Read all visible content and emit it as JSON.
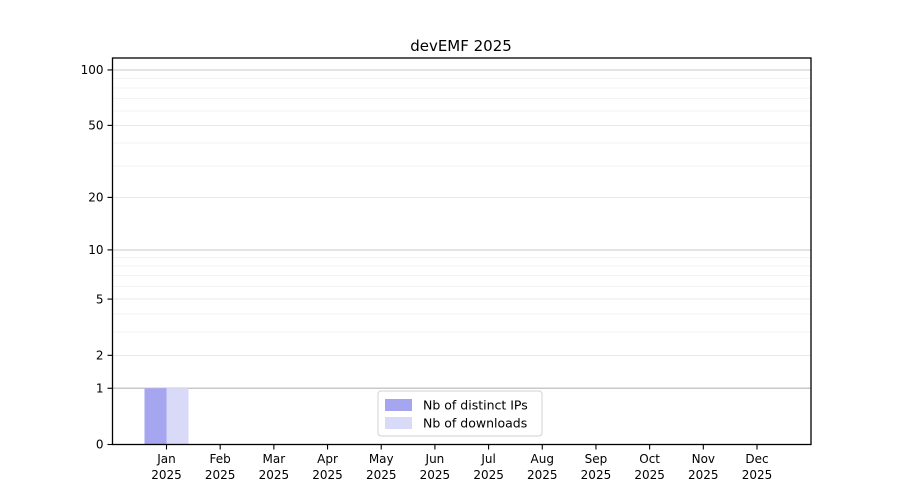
{
  "chart_data": {
    "type": "bar",
    "title": "devEMF 2025",
    "categories": [
      "Jan",
      "Feb",
      "Mar",
      "Apr",
      "May",
      "Jun",
      "Jul",
      "Aug",
      "Sep",
      "Oct",
      "Nov",
      "Dec"
    ],
    "category_year_line": "2025",
    "series": [
      {
        "name": "Nb of distinct IPs",
        "color": "#a5a5f0",
        "values": [
          1,
          0,
          0,
          0,
          0,
          0,
          0,
          0,
          0,
          0,
          0,
          0
        ]
      },
      {
        "name": "Nb of downloads",
        "color": "#d9d9f8",
        "values": [
          1,
          0,
          0,
          0,
          0,
          0,
          0,
          0,
          0,
          0,
          0,
          0
        ]
      }
    ],
    "yscale": "log1p",
    "y_ticks": [
      0,
      1,
      2,
      5,
      10,
      20,
      50,
      100
    ],
    "y_minor_ticks": [
      3,
      4,
      6,
      7,
      8,
      9,
      30,
      40,
      60,
      70,
      80,
      90
    ],
    "ylim": [
      0,
      116
    ],
    "grid": "horizontal",
    "legend_position": "bottom-center",
    "colors": {
      "background": "#ffffff",
      "axis": "#000000",
      "grid_decade": "#c9c9c9",
      "grid_major": "#e9e9e9",
      "grid_minor": "#f3f3f3",
      "legend_border": "#d0d0d0",
      "legend_background": "#ffffff"
    }
  }
}
